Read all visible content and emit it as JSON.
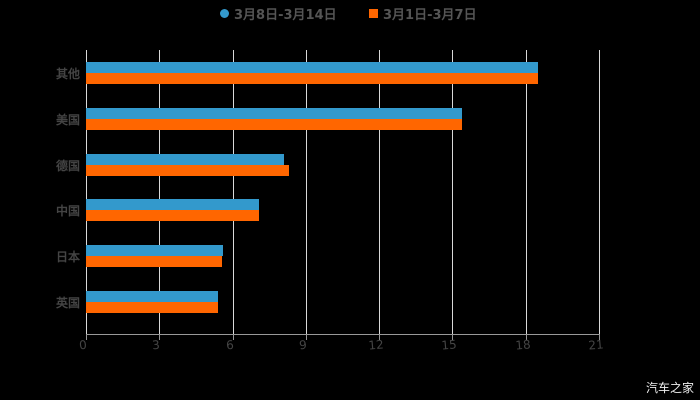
{
  "chart_data": {
    "type": "bar",
    "orientation": "horizontal",
    "title": "",
    "xlabel": "",
    "ylabel": "",
    "categories": [
      "其他",
      "美国",
      "德国",
      "中国",
      "日本",
      "英国"
    ],
    "series": [
      {
        "name": "3月8日-3月14日",
        "color": "#3399cc",
        "values": [
          18.5,
          15.4,
          8.1,
          7.1,
          5.6,
          5.4
        ]
      },
      {
        "name": "3月1日-3月7日",
        "color": "#ff6600",
        "values": [
          18.5,
          15.4,
          8.3,
          7.1,
          5.55,
          5.4
        ]
      }
    ],
    "xlim": [
      0,
      21
    ],
    "xticks": [
      "0",
      "3",
      "6",
      "9",
      "12",
      "15",
      "18",
      "21"
    ],
    "grid": true,
    "legend_position": "top"
  },
  "legend": {
    "items": [
      {
        "label": "3月8日-3月14日",
        "color": "#3399cc",
        "shape": "circle"
      },
      {
        "label": "3月1日-3月7日",
        "color": "#ff6600",
        "shape": "square"
      }
    ]
  },
  "watermark": "汽车之家"
}
